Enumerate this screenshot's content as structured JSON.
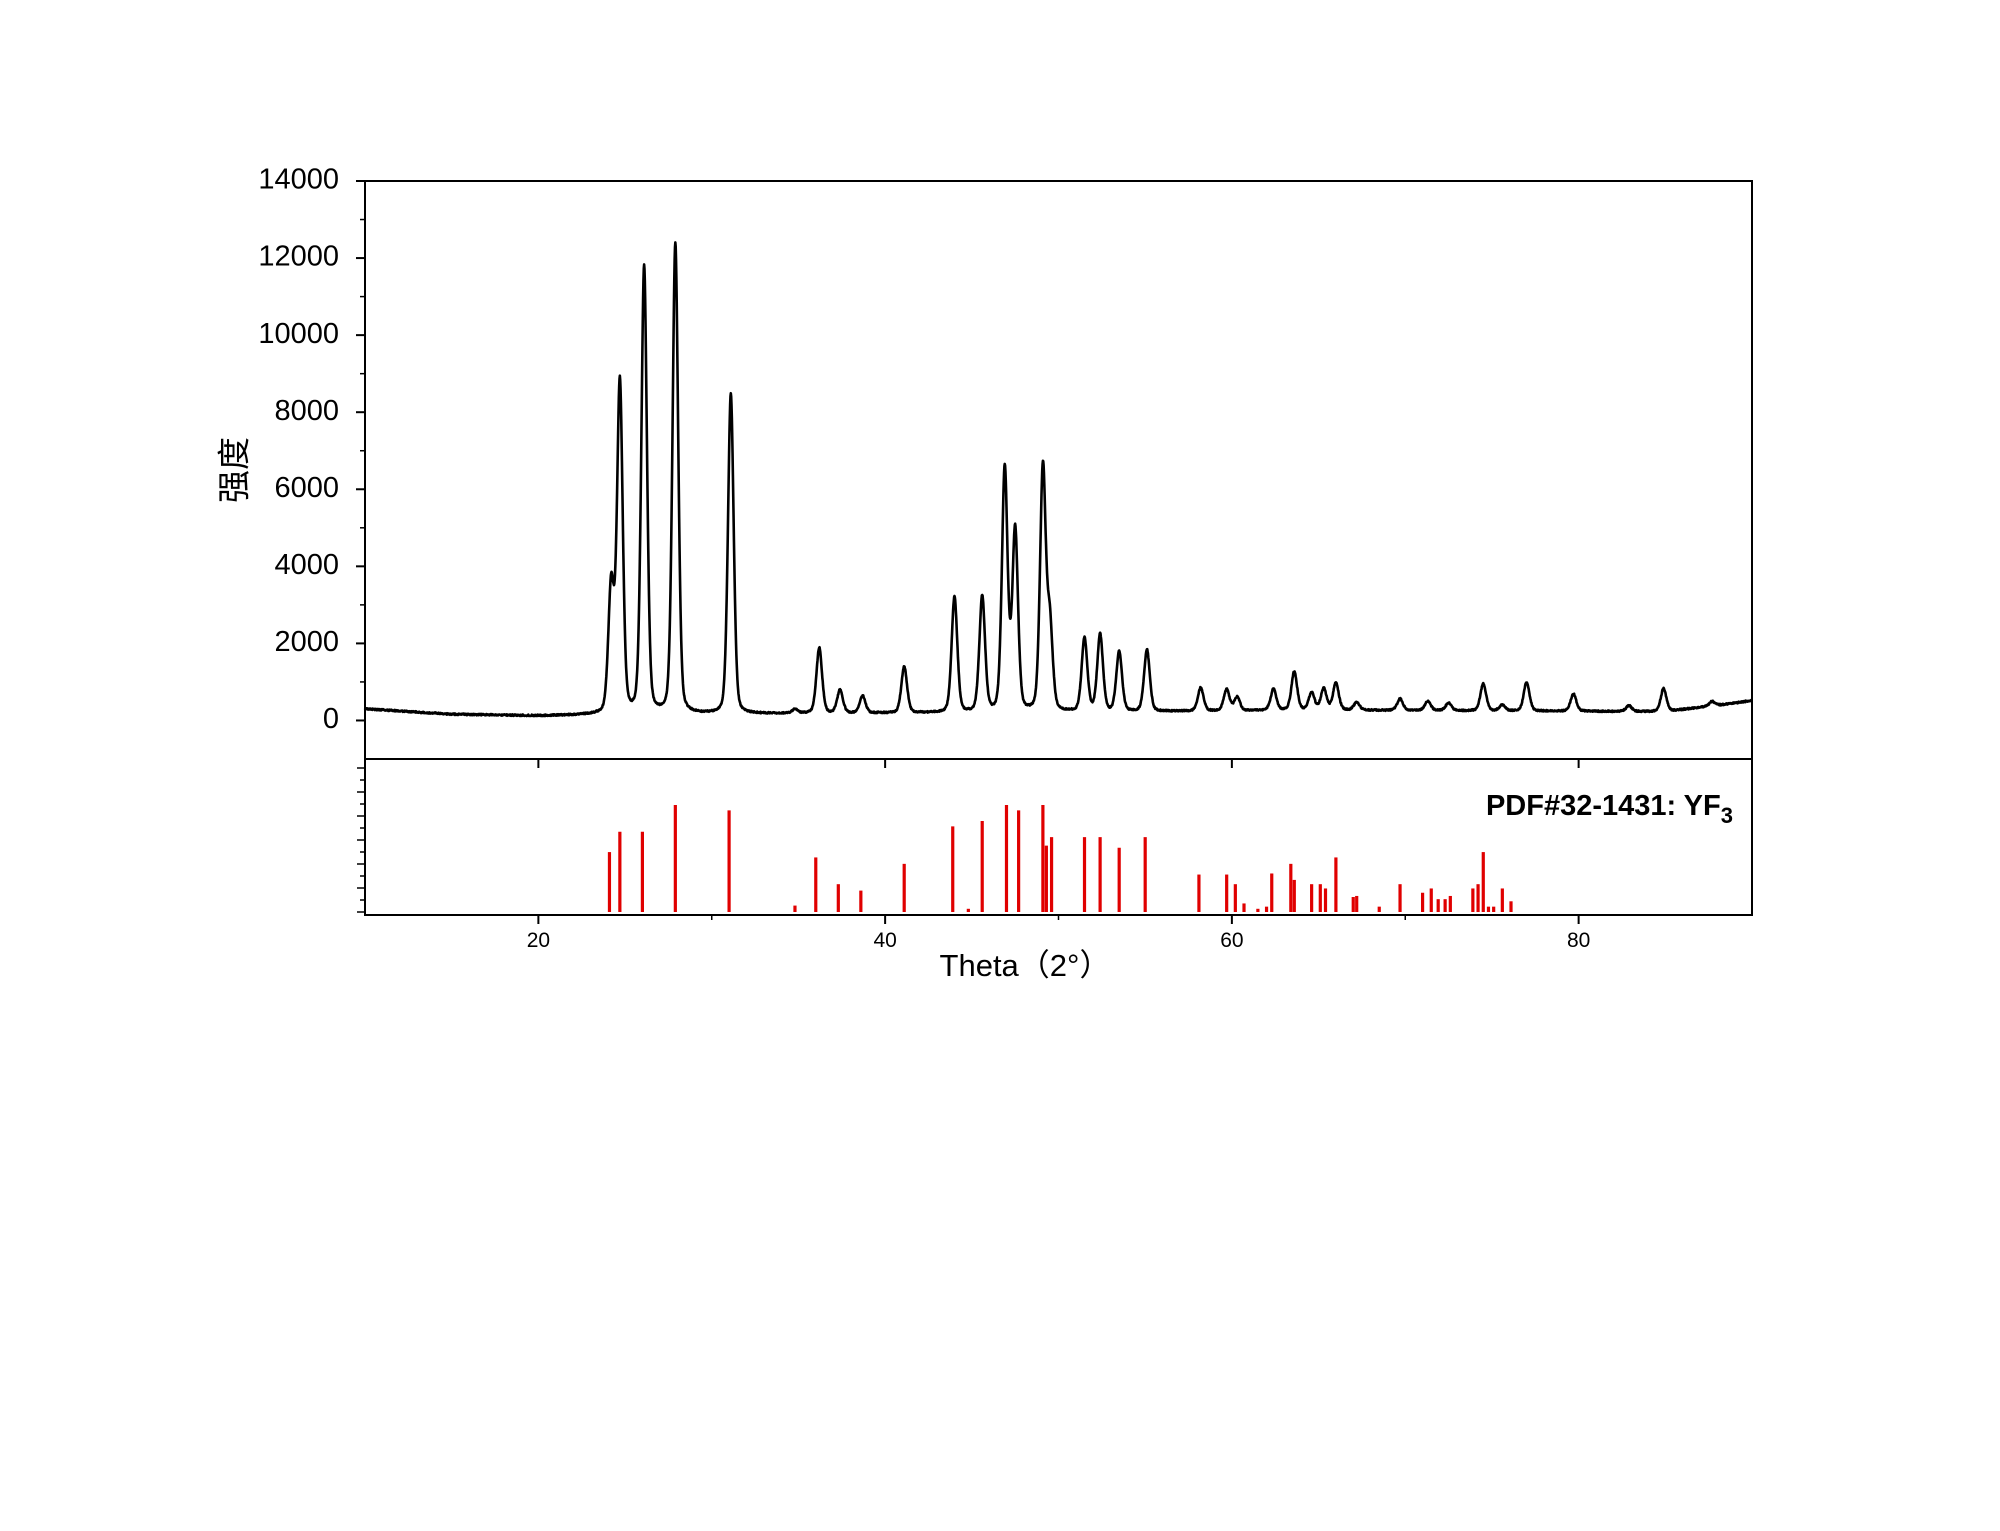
{
  "chart_data": {
    "type": "line",
    "xlabel": "Theta（2°）",
    "xlim": [
      10,
      90
    ],
    "x_ticks": [
      20,
      40,
      60,
      80
    ],
    "top_panel": {
      "ylabel": "强度",
      "ylim": [
        -1000,
        14000
      ],
      "y_ticks": [
        0,
        2000,
        4000,
        6000,
        8000,
        10000,
        12000,
        14000
      ],
      "line_color": "#000000",
      "baseline": [
        [
          10,
          300
        ],
        [
          15,
          160
        ],
        [
          20,
          120
        ],
        [
          23,
          140
        ],
        [
          30,
          160
        ],
        [
          35,
          180
        ],
        [
          45,
          200
        ],
        [
          55,
          230
        ],
        [
          65,
          270
        ],
        [
          75,
          250
        ],
        [
          85,
          230
        ],
        [
          89,
          450
        ],
        [
          90,
          520
        ]
      ],
      "peaks": [
        {
          "x": 24.2,
          "height": 3300
        },
        {
          "x": 24.7,
          "height": 8600
        },
        {
          "x": 26.1,
          "height": 11600
        },
        {
          "x": 27.9,
          "height": 12200
        },
        {
          "x": 31.1,
          "height": 8300
        },
        {
          "x": 34.8,
          "height": 100
        },
        {
          "x": 36.2,
          "height": 1700
        },
        {
          "x": 37.4,
          "height": 600
        },
        {
          "x": 38.7,
          "height": 450
        },
        {
          "x": 41.1,
          "height": 1200
        },
        {
          "x": 44.0,
          "height": 3000
        },
        {
          "x": 45.6,
          "height": 3000
        },
        {
          "x": 46.9,
          "height": 6300
        },
        {
          "x": 47.5,
          "height": 4700
        },
        {
          "x": 49.1,
          "height": 6300
        },
        {
          "x": 49.5,
          "height": 2200
        },
        {
          "x": 51.5,
          "height": 1900
        },
        {
          "x": 52.4,
          "height": 2000
        },
        {
          "x": 53.5,
          "height": 1550
        },
        {
          "x": 55.1,
          "height": 1600
        },
        {
          "x": 58.2,
          "height": 600
        },
        {
          "x": 59.7,
          "height": 550
        },
        {
          "x": 60.3,
          "height": 350
        },
        {
          "x": 62.4,
          "height": 550
        },
        {
          "x": 63.6,
          "height": 1000
        },
        {
          "x": 64.6,
          "height": 450
        },
        {
          "x": 65.3,
          "height": 550
        },
        {
          "x": 66.0,
          "height": 700
        },
        {
          "x": 67.2,
          "height": 200
        },
        {
          "x": 69.7,
          "height": 300
        },
        {
          "x": 71.3,
          "height": 250
        },
        {
          "x": 72.5,
          "height": 200
        },
        {
          "x": 74.5,
          "height": 700
        },
        {
          "x": 75.6,
          "height": 150
        },
        {
          "x": 77.0,
          "height": 750
        },
        {
          "x": 79.7,
          "height": 450
        },
        {
          "x": 82.9,
          "height": 150
        },
        {
          "x": 84.9,
          "height": 600
        },
        {
          "x": 87.7,
          "height": 120
        }
      ]
    },
    "bottom_panel": {
      "label_main": "PDF#32-1431: YF",
      "label_subscript": "3",
      "stick_color": "#e00000",
      "ylim": [
        0,
        100
      ],
      "sticks": [
        {
          "x": 24.1,
          "h": 56
        },
        {
          "x": 24.7,
          "h": 75
        },
        {
          "x": 26.0,
          "h": 75
        },
        {
          "x": 27.9,
          "h": 100
        },
        {
          "x": 31.0,
          "h": 95
        },
        {
          "x": 34.8,
          "h": 6
        },
        {
          "x": 36.0,
          "h": 51
        },
        {
          "x": 37.3,
          "h": 26
        },
        {
          "x": 38.6,
          "h": 20
        },
        {
          "x": 41.1,
          "h": 45
        },
        {
          "x": 43.9,
          "h": 80
        },
        {
          "x": 44.8,
          "h": 3
        },
        {
          "x": 45.6,
          "h": 85
        },
        {
          "x": 47.0,
          "h": 100
        },
        {
          "x": 47.7,
          "h": 95
        },
        {
          "x": 49.1,
          "h": 100
        },
        {
          "x": 49.3,
          "h": 62
        },
        {
          "x": 49.6,
          "h": 70
        },
        {
          "x": 51.5,
          "h": 70
        },
        {
          "x": 52.4,
          "h": 70
        },
        {
          "x": 53.5,
          "h": 60
        },
        {
          "x": 55.0,
          "h": 70
        },
        {
          "x": 58.1,
          "h": 35
        },
        {
          "x": 59.7,
          "h": 35
        },
        {
          "x": 60.2,
          "h": 26
        },
        {
          "x": 60.7,
          "h": 8
        },
        {
          "x": 61.5,
          "h": 3
        },
        {
          "x": 62.0,
          "h": 5
        },
        {
          "x": 62.3,
          "h": 36
        },
        {
          "x": 63.4,
          "h": 45
        },
        {
          "x": 63.6,
          "h": 30
        },
        {
          "x": 64.6,
          "h": 26
        },
        {
          "x": 65.1,
          "h": 26
        },
        {
          "x": 65.4,
          "h": 22
        },
        {
          "x": 66.0,
          "h": 51
        },
        {
          "x": 67.0,
          "h": 14
        },
        {
          "x": 67.2,
          "h": 15
        },
        {
          "x": 68.5,
          "h": 5
        },
        {
          "x": 69.7,
          "h": 26
        },
        {
          "x": 71.0,
          "h": 18
        },
        {
          "x": 71.5,
          "h": 22
        },
        {
          "x": 71.9,
          "h": 12
        },
        {
          "x": 72.3,
          "h": 12
        },
        {
          "x": 72.6,
          "h": 15
        },
        {
          "x": 73.9,
          "h": 22
        },
        {
          "x": 74.2,
          "h": 26
        },
        {
          "x": 74.5,
          "h": 56
        },
        {
          "x": 74.8,
          "h": 5
        },
        {
          "x": 75.1,
          "h": 5
        },
        {
          "x": 75.6,
          "h": 22
        },
        {
          "x": 76.1,
          "h": 10
        }
      ]
    }
  }
}
